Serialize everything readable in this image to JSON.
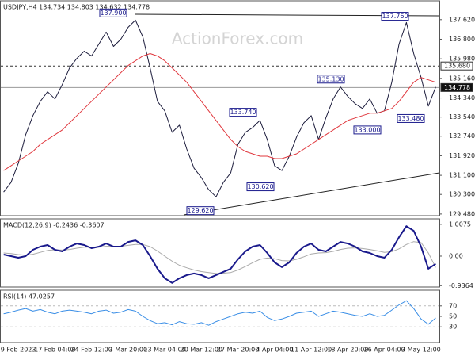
{
  "watermark": "ActionForex.com",
  "chart_data": [
    {
      "type": "line",
      "title": "USDJPY,H4  134.734 134.803 134.632 134.778",
      "ylim": [
        129.41,
        138.41
      ],
      "yticks": [
        {
          "value": 137.62,
          "label": "137.620"
        },
        {
          "value": 136.8,
          "label": "136.800"
        },
        {
          "value": 135.98,
          "label": "135.980"
        },
        {
          "value": 135.16,
          "label": "135.160"
        },
        {
          "value": 134.34,
          "label": "134.340"
        },
        {
          "value": 133.54,
          "label": "133.540"
        },
        {
          "value": 132.74,
          "label": "132.740"
        },
        {
          "value": 131.92,
          "label": "131.920"
        },
        {
          "value": 131.1,
          "label": "131.100"
        },
        {
          "value": 130.3,
          "label": "130.300"
        },
        {
          "value": 129.48,
          "label": "129.480"
        }
      ],
      "levels": [
        {
          "value": 135.68,
          "label": "135.680",
          "dashed": true
        },
        {
          "value": 134.778,
          "label": "134.778",
          "dashed": false
        }
      ],
      "annotations": [
        {
          "value": 137.9,
          "label": "137.900"
        },
        {
          "value": 137.76,
          "label": "137.760"
        },
        {
          "value": 135.13,
          "label": "135.130"
        },
        {
          "value": 133.74,
          "label": "133.740"
        },
        {
          "value": 133.0,
          "label": "133.000"
        },
        {
          "value": 133.48,
          "label": "133.480"
        },
        {
          "value": 130.62,
          "label": "130.620"
        },
        {
          "value": 129.62,
          "label": "129.620"
        }
      ],
      "series": [
        {
          "color": "#1c1c3c",
          "width": 1,
          "values": [
            130.4,
            130.8,
            131.6,
            132.8,
            133.6,
            134.2,
            134.6,
            134.3,
            134.9,
            135.6,
            136.0,
            136.3,
            136.1,
            136.6,
            137.1,
            136.5,
            136.8,
            137.3,
            137.6,
            136.9,
            135.6,
            134.2,
            133.8,
            132.9,
            133.2,
            132.2,
            131.4,
            131.0,
            130.5,
            130.2,
            130.8,
            131.2,
            132.4,
            132.9,
            133.1,
            133.4,
            132.6,
            131.5,
            131.3,
            131.9,
            132.7,
            133.3,
            133.6,
            132.6,
            133.5,
            134.3,
            134.8,
            134.4,
            134.1,
            133.9,
            134.3,
            133.7,
            133.8,
            135.0,
            136.6,
            137.5,
            136.2,
            135.2,
            134.0,
            134.8
          ]
        },
        {
          "color": "#e0383e",
          "width": 1,
          "values": [
            131.3,
            131.5,
            131.7,
            131.9,
            132.1,
            132.4,
            132.6,
            132.8,
            133.0,
            133.3,
            133.6,
            133.9,
            134.2,
            134.5,
            134.8,
            135.1,
            135.4,
            135.7,
            135.9,
            136.1,
            136.2,
            136.1,
            135.9,
            135.6,
            135.3,
            135.0,
            134.6,
            134.2,
            133.8,
            133.4,
            133.0,
            132.6,
            132.3,
            132.1,
            132.0,
            131.9,
            131.9,
            131.8,
            131.8,
            131.9,
            132.0,
            132.2,
            132.4,
            132.6,
            132.8,
            133.0,
            133.2,
            133.4,
            133.5,
            133.6,
            133.7,
            133.7,
            133.8,
            133.9,
            134.2,
            134.6,
            135.0,
            135.2,
            135.1,
            135.0
          ]
        }
      ]
    },
    {
      "type": "line",
      "title": "MACD(12,26,9) -0.2436 -0.3607",
      "ylim": [
        -0.98,
        1.18
      ],
      "yticks": [
        1.0075,
        {
          "value": 0,
          "label": "0.00"
        },
        -0.9364
      ],
      "series": [
        {
          "color": "#aaaaaa",
          "width": 1,
          "values": [
            0.1,
            0.08,
            0.05,
            0.03,
            0.06,
            0.12,
            0.18,
            0.2,
            0.19,
            0.21,
            0.25,
            0.28,
            0.28,
            0.28,
            0.31,
            0.31,
            0.31,
            0.34,
            0.37,
            0.37,
            0.3,
            0.16,
            0.0,
            -0.16,
            -0.29,
            -0.37,
            -0.44,
            -0.49,
            -0.52,
            -0.55,
            -0.54,
            -0.52,
            -0.44,
            -0.33,
            -0.21,
            -0.1,
            -0.06,
            -0.08,
            -0.14,
            -0.15,
            -0.1,
            -0.02,
            0.07,
            0.1,
            0.11,
            0.15,
            0.21,
            0.25,
            0.26,
            0.24,
            0.21,
            0.17,
            0.12,
            0.14,
            0.23,
            0.37,
            0.46,
            0.43,
            0.1,
            -0.3607
          ]
        },
        {
          "color": "#1a1a8c",
          "width": 2,
          "values": [
            0.05,
            0.0,
            -0.05,
            0.0,
            0.2,
            0.3,
            0.35,
            0.2,
            0.15,
            0.3,
            0.4,
            0.35,
            0.25,
            0.3,
            0.4,
            0.3,
            0.3,
            0.45,
            0.5,
            0.35,
            0.0,
            -0.4,
            -0.7,
            -0.85,
            -0.7,
            -0.6,
            -0.55,
            -0.6,
            -0.7,
            -0.6,
            -0.5,
            -0.4,
            -0.1,
            0.15,
            0.3,
            0.35,
            0.1,
            -0.2,
            -0.35,
            -0.2,
            0.1,
            0.3,
            0.4,
            0.2,
            0.15,
            0.3,
            0.45,
            0.4,
            0.3,
            0.15,
            0.1,
            0.0,
            -0.05,
            0.2,
            0.6,
            0.95,
            0.8,
            0.3,
            -0.4,
            -0.2436
          ]
        }
      ]
    },
    {
      "type": "line",
      "title": "RSI(14) 47.0257",
      "ylim": [
        0,
        100
      ],
      "yticks": [
        70,
        50,
        30
      ],
      "dashed_levels": [
        70,
        30
      ],
      "categories": [
        null,
        null,
        "9 Feb 2023",
        null,
        null,
        null,
        null,
        "17 Feb 04:00",
        null,
        null,
        null,
        null,
        "24 Feb 12:00",
        null,
        null,
        null,
        null,
        "3 Mar 20:00",
        null,
        null,
        null,
        null,
        "13 Mar 04:00",
        null,
        null,
        null,
        null,
        "20 Mar 12:00",
        null,
        null,
        null,
        null,
        "27 Mar 20:00",
        null,
        null,
        null,
        null,
        "4 Apr 04:00",
        null,
        null,
        null,
        null,
        "11 Apr 12:00",
        null,
        null,
        null,
        null,
        "18 Apr 20:00",
        null,
        null,
        null,
        null,
        "26 Apr 04:00",
        null,
        null,
        null,
        null,
        "3 May 12:00",
        null,
        null
      ],
      "series": [
        {
          "color": "#3a8ee6",
          "width": 1,
          "values": [
            55,
            58,
            62,
            65,
            60,
            63,
            58,
            55,
            60,
            62,
            60,
            58,
            55,
            60,
            62,
            56,
            58,
            63,
            60,
            50,
            42,
            36,
            38,
            34,
            40,
            36,
            35,
            38,
            33,
            40,
            45,
            50,
            55,
            58,
            56,
            60,
            48,
            42,
            45,
            50,
            56,
            58,
            60,
            50,
            55,
            60,
            58,
            55,
            52,
            50,
            55,
            50,
            52,
            62,
            72,
            80,
            65,
            45,
            35,
            47.0257
          ]
        }
      ]
    }
  ]
}
